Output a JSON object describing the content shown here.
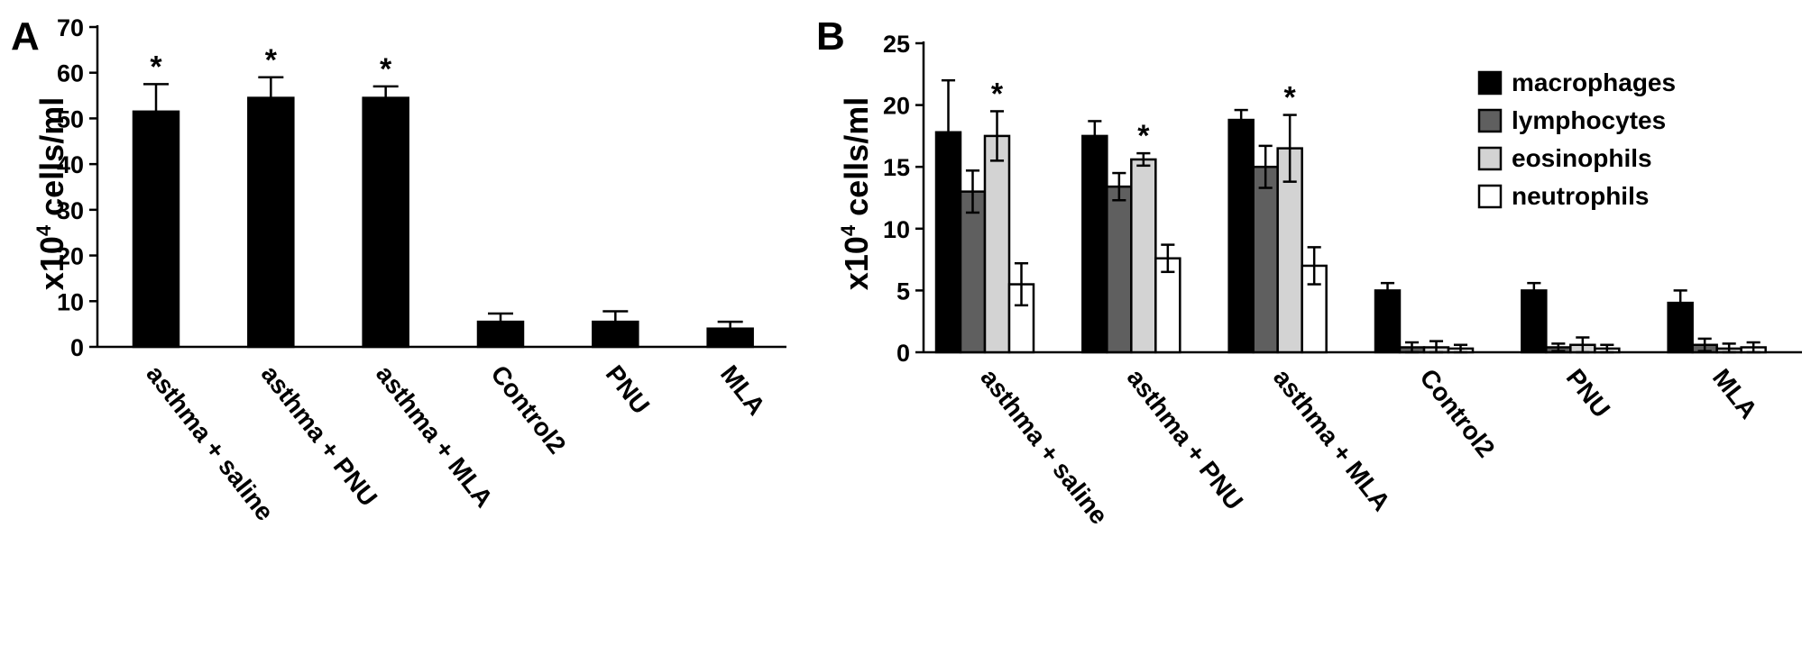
{
  "chart_data": [
    {
      "panel_label": "A",
      "type": "bar",
      "ylabel": "x10",
      "ylabel_sup": "4",
      "ylabel_tail": " cells/ml",
      "ylim": [
        0,
        70
      ],
      "yticks": [
        "0",
        "10",
        "20",
        "30",
        "40",
        "50",
        "60",
        "70"
      ],
      "categories": [
        "asthma + saline",
        "asthma + PNU",
        "asthma + MLA",
        "Control2",
        "PNU",
        "MLA"
      ],
      "series": [
        {
          "color": "#000000",
          "values": [
            51.5,
            54.5,
            54.5,
            5.5,
            5.5,
            4.0
          ],
          "errors": [
            6.0,
            4.5,
            2.5,
            1.8,
            2.3,
            1.5
          ],
          "significance": [
            "*",
            "*",
            "*",
            "",
            "",
            ""
          ]
        }
      ],
      "grid": false
    },
    {
      "panel_label": "B",
      "type": "bar",
      "ylabel": "x10",
      "ylabel_sup": "4",
      "ylabel_tail": " cells/ml",
      "ylim": [
        0,
        25
      ],
      "yticks": [
        "0",
        "5",
        "10",
        "15",
        "20",
        "25"
      ],
      "categories": [
        "asthma + saline",
        "asthma + PNU",
        "asthma + MLA",
        "Control2",
        "PNU",
        "MLA"
      ],
      "legend_position": "top-right",
      "series": [
        {
          "name": "macrophages",
          "color": "#000000",
          "values": [
            17.8,
            17.5,
            18.8,
            5.0,
            5.0,
            4.0
          ],
          "errors": [
            4.2,
            1.2,
            0.8,
            0.6,
            0.6,
            1.0
          ],
          "significance": [
            "",
            "",
            "",
            "",
            "",
            ""
          ]
        },
        {
          "name": "lymphocytes",
          "color": "#5f5f5f",
          "values": [
            13.0,
            13.4,
            15.0,
            0.4,
            0.4,
            0.6
          ],
          "errors": [
            1.7,
            1.1,
            1.7,
            0.4,
            0.3,
            0.5
          ],
          "significance": [
            "",
            "",
            "",
            "",
            "",
            ""
          ]
        },
        {
          "name": "eosinophils",
          "color": "#d3d3d3",
          "values": [
            17.5,
            15.6,
            16.5,
            0.4,
            0.6,
            0.3
          ],
          "errors": [
            2.0,
            0.5,
            2.7,
            0.5,
            0.6,
            0.4
          ],
          "significance": [
            "*",
            "*",
            "*",
            "",
            "",
            ""
          ]
        },
        {
          "name": "neutrophils",
          "color": "#ffffff",
          "values": [
            5.5,
            7.6,
            7.0,
            0.3,
            0.3,
            0.4
          ],
          "errors": [
            1.7,
            1.1,
            1.5,
            0.3,
            0.3,
            0.4
          ],
          "significance": [
            "",
            "",
            "",
            "",
            "",
            ""
          ]
        }
      ],
      "grid": false
    }
  ]
}
